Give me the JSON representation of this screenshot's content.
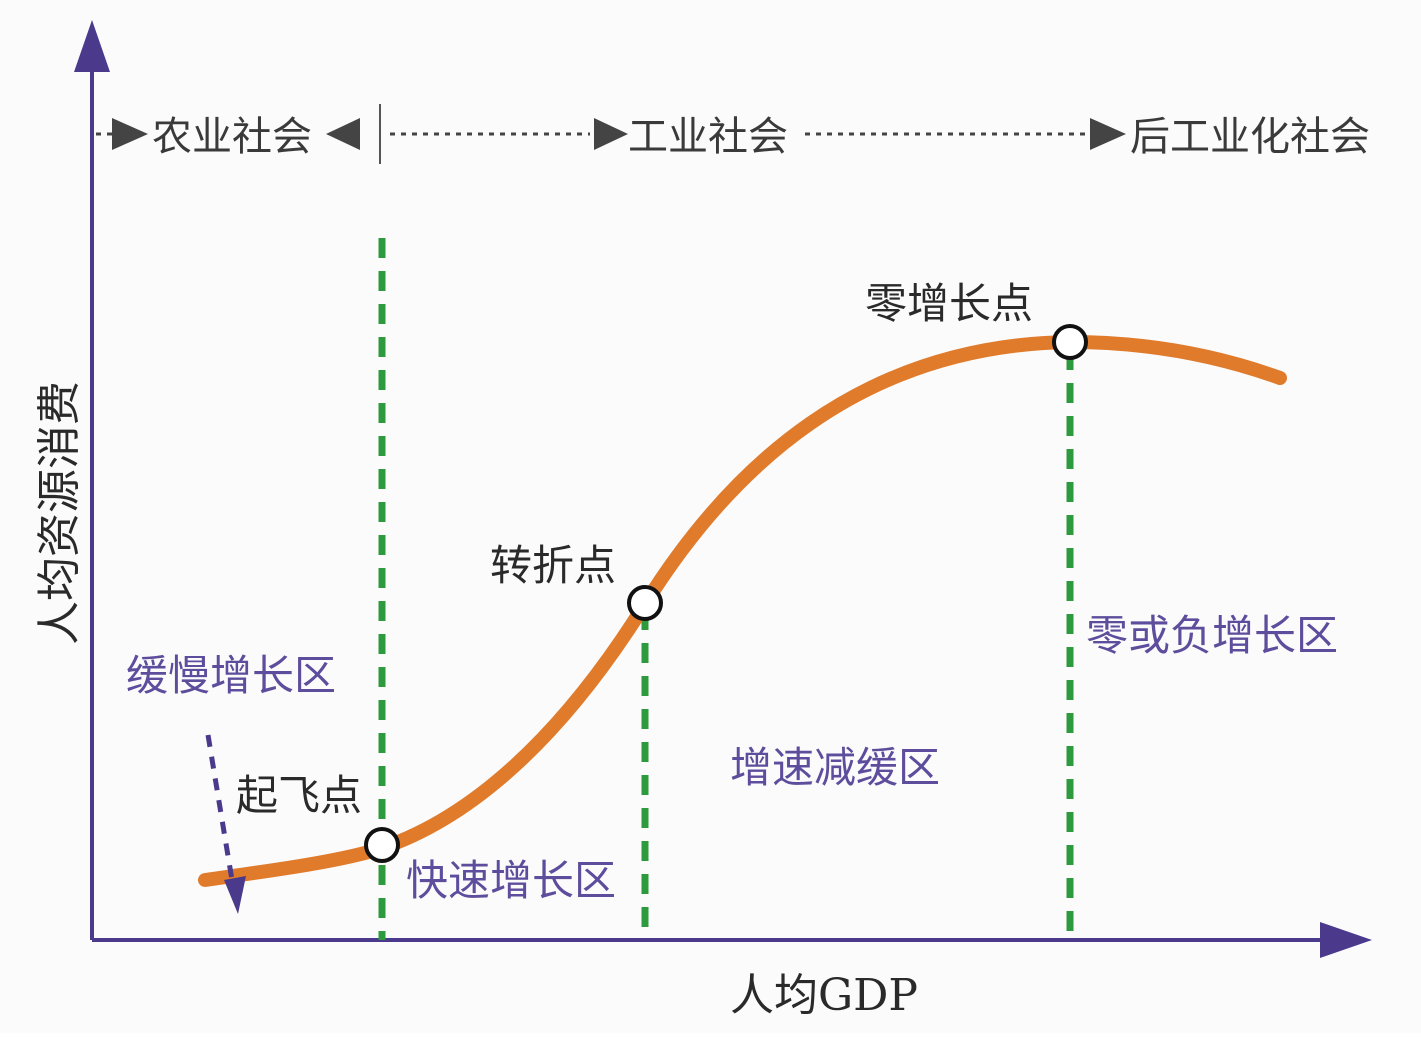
{
  "axes": {
    "x_label": "人均GDP",
    "y_label": "人均资源消费"
  },
  "eras": [
    {
      "label": "农业社会"
    },
    {
      "label": "工业社会"
    },
    {
      "label": "后工业化社会"
    }
  ],
  "points": {
    "takeoff": "起飞点",
    "turning": "转折点",
    "zero_growth": "零增长点"
  },
  "zones": {
    "slow": "缓慢增长区",
    "rapid": "快速增长区",
    "decelerating": "增速减缓区",
    "zero_negative": "零或负增长区"
  },
  "colors": {
    "curve": "#e07b2c",
    "axis": "#4b3a8c",
    "divider": "#2e9a3e",
    "zone_text": "#5e4d9c",
    "arrowhead": "#444444"
  }
}
